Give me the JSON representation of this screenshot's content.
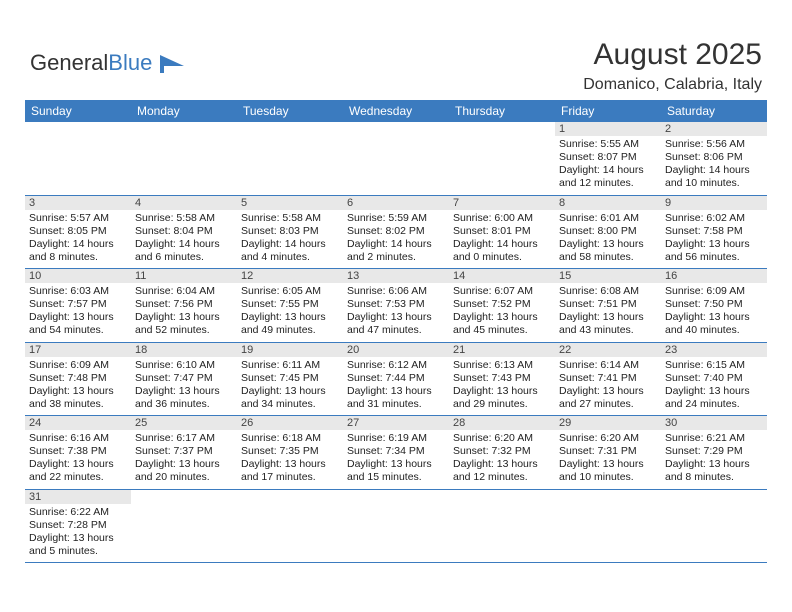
{
  "logo": {
    "text1": "General",
    "text2": "Blue"
  },
  "title": "August 2025",
  "location": "Domanico, Calabria, Italy",
  "colors": {
    "header_bg": "#3b7bbf",
    "header_text": "#ffffff",
    "daynum_bg": "#e8e8e8",
    "border": "#3b7bbf"
  },
  "dayNames": [
    "Sunday",
    "Monday",
    "Tuesday",
    "Wednesday",
    "Thursday",
    "Friday",
    "Saturday"
  ],
  "weeks": [
    [
      null,
      null,
      null,
      null,
      null,
      {
        "n": "1",
        "sr": "5:55 AM",
        "ss": "8:07 PM",
        "dl": "14 hours and 12 minutes."
      },
      {
        "n": "2",
        "sr": "5:56 AM",
        "ss": "8:06 PM",
        "dl": "14 hours and 10 minutes."
      }
    ],
    [
      {
        "n": "3",
        "sr": "5:57 AM",
        "ss": "8:05 PM",
        "dl": "14 hours and 8 minutes."
      },
      {
        "n": "4",
        "sr": "5:58 AM",
        "ss": "8:04 PM",
        "dl": "14 hours and 6 minutes."
      },
      {
        "n": "5",
        "sr": "5:58 AM",
        "ss": "8:03 PM",
        "dl": "14 hours and 4 minutes."
      },
      {
        "n": "6",
        "sr": "5:59 AM",
        "ss": "8:02 PM",
        "dl": "14 hours and 2 minutes."
      },
      {
        "n": "7",
        "sr": "6:00 AM",
        "ss": "8:01 PM",
        "dl": "14 hours and 0 minutes."
      },
      {
        "n": "8",
        "sr": "6:01 AM",
        "ss": "8:00 PM",
        "dl": "13 hours and 58 minutes."
      },
      {
        "n": "9",
        "sr": "6:02 AM",
        "ss": "7:58 PM",
        "dl": "13 hours and 56 minutes."
      }
    ],
    [
      {
        "n": "10",
        "sr": "6:03 AM",
        "ss": "7:57 PM",
        "dl": "13 hours and 54 minutes."
      },
      {
        "n": "11",
        "sr": "6:04 AM",
        "ss": "7:56 PM",
        "dl": "13 hours and 52 minutes."
      },
      {
        "n": "12",
        "sr": "6:05 AM",
        "ss": "7:55 PM",
        "dl": "13 hours and 49 minutes."
      },
      {
        "n": "13",
        "sr": "6:06 AM",
        "ss": "7:53 PM",
        "dl": "13 hours and 47 minutes."
      },
      {
        "n": "14",
        "sr": "6:07 AM",
        "ss": "7:52 PM",
        "dl": "13 hours and 45 minutes."
      },
      {
        "n": "15",
        "sr": "6:08 AM",
        "ss": "7:51 PM",
        "dl": "13 hours and 43 minutes."
      },
      {
        "n": "16",
        "sr": "6:09 AM",
        "ss": "7:50 PM",
        "dl": "13 hours and 40 minutes."
      }
    ],
    [
      {
        "n": "17",
        "sr": "6:09 AM",
        "ss": "7:48 PM",
        "dl": "13 hours and 38 minutes."
      },
      {
        "n": "18",
        "sr": "6:10 AM",
        "ss": "7:47 PM",
        "dl": "13 hours and 36 minutes."
      },
      {
        "n": "19",
        "sr": "6:11 AM",
        "ss": "7:45 PM",
        "dl": "13 hours and 34 minutes."
      },
      {
        "n": "20",
        "sr": "6:12 AM",
        "ss": "7:44 PM",
        "dl": "13 hours and 31 minutes."
      },
      {
        "n": "21",
        "sr": "6:13 AM",
        "ss": "7:43 PM",
        "dl": "13 hours and 29 minutes."
      },
      {
        "n": "22",
        "sr": "6:14 AM",
        "ss": "7:41 PM",
        "dl": "13 hours and 27 minutes."
      },
      {
        "n": "23",
        "sr": "6:15 AM",
        "ss": "7:40 PM",
        "dl": "13 hours and 24 minutes."
      }
    ],
    [
      {
        "n": "24",
        "sr": "6:16 AM",
        "ss": "7:38 PM",
        "dl": "13 hours and 22 minutes."
      },
      {
        "n": "25",
        "sr": "6:17 AM",
        "ss": "7:37 PM",
        "dl": "13 hours and 20 minutes."
      },
      {
        "n": "26",
        "sr": "6:18 AM",
        "ss": "7:35 PM",
        "dl": "13 hours and 17 minutes."
      },
      {
        "n": "27",
        "sr": "6:19 AM",
        "ss": "7:34 PM",
        "dl": "13 hours and 15 minutes."
      },
      {
        "n": "28",
        "sr": "6:20 AM",
        "ss": "7:32 PM",
        "dl": "13 hours and 12 minutes."
      },
      {
        "n": "29",
        "sr": "6:20 AM",
        "ss": "7:31 PM",
        "dl": "13 hours and 10 minutes."
      },
      {
        "n": "30",
        "sr": "6:21 AM",
        "ss": "7:29 PM",
        "dl": "13 hours and 8 minutes."
      }
    ],
    [
      {
        "n": "31",
        "sr": "6:22 AM",
        "ss": "7:28 PM",
        "dl": "13 hours and 5 minutes."
      },
      null,
      null,
      null,
      null,
      null,
      null
    ]
  ],
  "labels": {
    "sunrise": "Sunrise: ",
    "sunset": "Sunset: ",
    "daylight": "Daylight: "
  }
}
